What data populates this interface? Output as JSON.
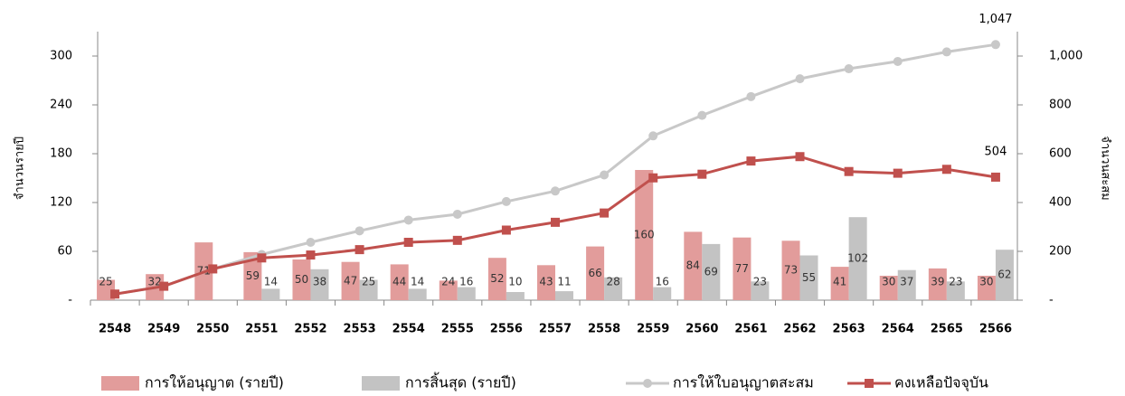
{
  "chart_data": {
    "type": "bar",
    "y_label": "จำนวนรายปี",
    "y2_label": "จำนวนสะสม",
    "categories": [
      "2548",
      "2549",
      "2550",
      "2551",
      "2552",
      "2553",
      "2554",
      "2555",
      "2556",
      "2557",
      "2558",
      "2559",
      "2560",
      "2561",
      "2562",
      "2563",
      "2564",
      "2565",
      "2566"
    ],
    "series": [
      {
        "name": "การให้อนุญาต (รายปี)",
        "type": "bar",
        "color": "#e29c9b",
        "values": [
          25,
          32,
          71,
          59,
          50,
          47,
          44,
          24,
          52,
          43,
          66,
          160,
          84,
          77,
          73,
          41,
          30,
          39,
          30
        ]
      },
      {
        "name": "การสิ้นสุด (รายปี)",
        "type": "bar",
        "color": "#c3c3c3",
        "values": [
          null,
          null,
          null,
          14,
          38,
          25,
          14,
          16,
          10,
          11,
          28,
          16,
          69,
          23,
          55,
          102,
          37,
          23,
          62
        ]
      },
      {
        "name": "การให้ใบอนุญาตสะสม",
        "type": "line",
        "axis": "y2",
        "color": "#c8c8c8",
        "marker": "circle",
        "values": [
          25,
          57,
          128,
          187,
          237,
          284,
          328,
          352,
          404,
          447,
          513,
          673,
          757,
          834,
          907,
          948,
          978,
          1017,
          1047
        ],
        "value_labels": [
          null,
          null,
          null,
          null,
          null,
          null,
          null,
          null,
          null,
          null,
          null,
          null,
          null,
          null,
          null,
          null,
          null,
          null,
          "1,047"
        ]
      },
      {
        "name": "คงเหลือปัจจุบัน",
        "type": "line",
        "axis": "y2",
        "color": "#c0504d",
        "marker": "square",
        "values": [
          25,
          57,
          128,
          173,
          185,
          207,
          237,
          245,
          287,
          319,
          357,
          501,
          516,
          570,
          588,
          527,
          520,
          536,
          504
        ],
        "value_labels": [
          null,
          null,
          null,
          null,
          null,
          null,
          null,
          null,
          null,
          null,
          null,
          null,
          null,
          null,
          null,
          null,
          null,
          null,
          "504"
        ]
      }
    ],
    "ylim": [
      0,
      330
    ],
    "yticks": [
      {
        "value": 0,
        "label": "-"
      },
      60,
      120,
      180,
      240,
      300
    ],
    "y2lim": [
      0,
      1100
    ],
    "y2ticks": [
      {
        "value": 0,
        "label": "-"
      },
      200,
      400,
      600,
      800,
      {
        "value": 1000,
        "label": "1,000"
      }
    ],
    "legend": "bottom"
  }
}
